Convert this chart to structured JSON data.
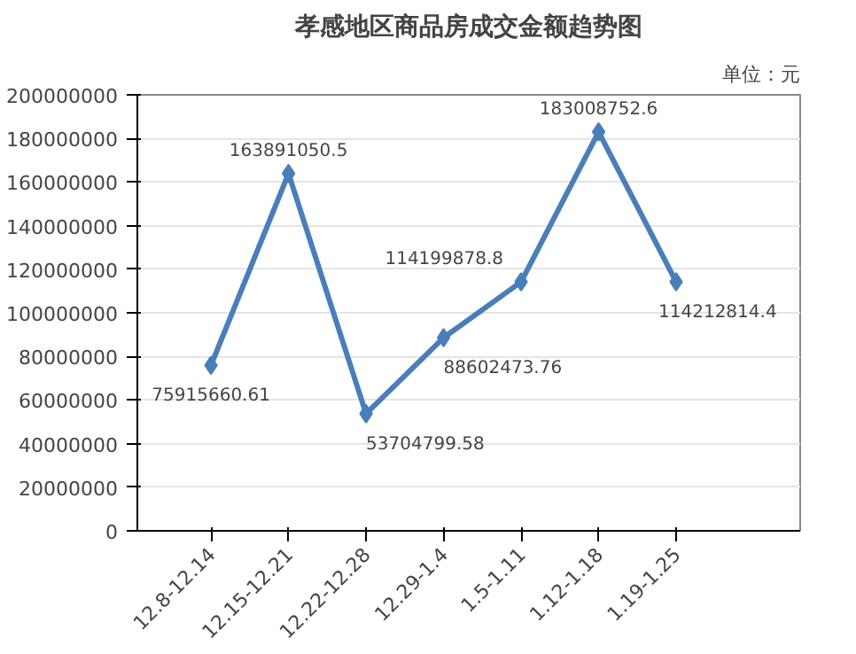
{
  "chart_data": {
    "type": "line",
    "title": "孝感地区商品房成交金额趋势图",
    "annotations": [
      "单位：元"
    ],
    "categories": [
      "12.8-12.14",
      "12.15-12.21",
      "12.22-12.28",
      "12.29-1.4",
      "1.5-1.11",
      "1.12-1.18",
      "1.19-1.25"
    ],
    "series": [
      {
        "color": "#4a7ebb",
        "values": [
          75915660.61,
          163891050.5,
          53704799.58,
          88602473.76,
          114199878.8,
          183008752.6,
          114212814.4
        ]
      }
    ],
    "ylim": [
      0,
      200000000
    ],
    "yticks": [
      0,
      20000000,
      40000000,
      60000000,
      80000000,
      100000000,
      120000000,
      140000000,
      160000000,
      180000000,
      200000000
    ],
    "grid": "y",
    "marker": "diamond",
    "line_style": "solid",
    "data_labels": true
  }
}
